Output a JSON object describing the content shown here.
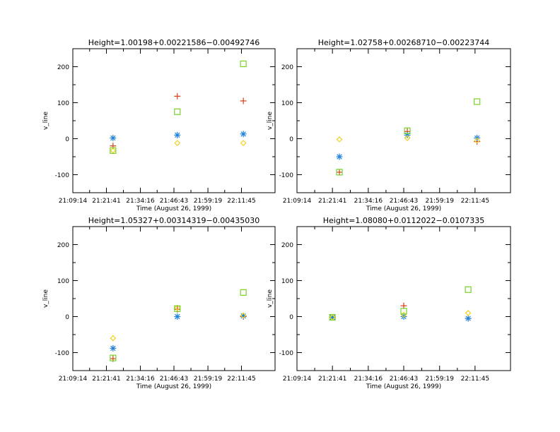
{
  "chart_data": [
    {
      "type": "scatter",
      "title": "Height=1.00198+0.00221586−0.00492746",
      "xlabel": "Time (August 26, 1999)",
      "ylabel": "v_line",
      "xlim": [
        "21:09:14",
        "22:24:12"
      ],
      "ylim": [
        -150,
        250
      ],
      "xticks": [
        "21:09:14",
        "21:21:41",
        "21:34:16",
        "21:46:43",
        "21:59:19",
        "22:11:45"
      ],
      "yticks": [
        -100,
        0,
        100,
        200
      ],
      "grid": false,
      "series": [
        {
          "marker": "plus",
          "color": "#dc3c14",
          "points": [
            [
              "21:24:08",
              -20
            ],
            [
              "21:47:58",
              118
            ],
            [
              "22:12:27",
              105
            ]
          ]
        },
        {
          "marker": "asterisk",
          "color": "#1e82dc",
          "points": [
            [
              "21:24:08",
              2
            ],
            [
              "21:47:58",
              10
            ],
            [
              "22:12:27",
              13
            ]
          ]
        },
        {
          "marker": "diamond",
          "color": "#f0d21e",
          "points": [
            [
              "21:24:08",
              -33
            ],
            [
              "21:47:58",
              -12
            ],
            [
              "22:12:27",
              -12
            ]
          ]
        },
        {
          "marker": "square",
          "color": "#78d228",
          "points": [
            [
              "21:24:08",
              -33
            ],
            [
              "21:47:58",
              75
            ],
            [
              "22:12:27",
              208
            ]
          ]
        }
      ]
    },
    {
      "type": "scatter",
      "title": "Height=1.02758+0.00268710−0.00223744",
      "xlabel": "Time (August 26, 1999)",
      "ylabel": "v_line",
      "xlim": [
        "21:09:14",
        "22:24:12"
      ],
      "ylim": [
        -150,
        250
      ],
      "xticks": [
        "21:09:14",
        "21:21:41",
        "21:34:16",
        "21:46:43",
        "21:59:19",
        "22:11:45"
      ],
      "yticks": [
        -100,
        0,
        100,
        200
      ],
      "grid": false,
      "series": [
        {
          "marker": "plus",
          "color": "#dc3c14",
          "points": [
            [
              "21:24:08",
              -93
            ],
            [
              "21:47:58",
              20
            ],
            [
              "22:12:27",
              -8
            ]
          ]
        },
        {
          "marker": "asterisk",
          "color": "#1e82dc",
          "points": [
            [
              "21:24:08",
              -50
            ],
            [
              "21:47:58",
              10
            ],
            [
              "22:12:27",
              2
            ]
          ]
        },
        {
          "marker": "diamond",
          "color": "#f0d21e",
          "points": [
            [
              "21:24:08",
              -2
            ],
            [
              "21:47:58",
              2
            ],
            [
              "22:12:27",
              -5
            ]
          ]
        },
        {
          "marker": "square",
          "color": "#78d228",
          "points": [
            [
              "21:24:08",
              -93
            ],
            [
              "21:47:58",
              22
            ],
            [
              "22:12:27",
              103
            ]
          ]
        }
      ]
    },
    {
      "type": "scatter",
      "title": "Height=1.05327+0.00314319−0.00435030",
      "xlabel": "Time (August 26, 1999)",
      "ylabel": "v_line",
      "xlim": [
        "21:09:14",
        "22:24:12"
      ],
      "ylim": [
        -150,
        250
      ],
      "xticks": [
        "21:09:14",
        "21:21:41",
        "21:34:16",
        "21:46:43",
        "21:59:19",
        "22:11:45"
      ],
      "yticks": [
        -100,
        0,
        100,
        200
      ],
      "grid": false,
      "series": [
        {
          "marker": "plus",
          "color": "#dc3c14",
          "points": [
            [
              "21:24:08",
              -117
            ],
            [
              "21:47:58",
              20
            ],
            [
              "22:12:27",
              0
            ]
          ]
        },
        {
          "marker": "asterisk",
          "color": "#1e82dc",
          "points": [
            [
              "21:24:08",
              -88
            ],
            [
              "21:47:58",
              0
            ],
            [
              "22:12:27",
              2
            ]
          ]
        },
        {
          "marker": "diamond",
          "color": "#f0d21e",
          "points": [
            [
              "21:24:08",
              -60
            ],
            [
              "21:47:58",
              25
            ],
            [
              "22:12:27",
              3
            ]
          ]
        },
        {
          "marker": "square",
          "color": "#78d228",
          "points": [
            [
              "21:24:08",
              -115
            ],
            [
              "21:47:58",
              22
            ],
            [
              "22:12:27",
              67
            ]
          ]
        }
      ]
    },
    {
      "type": "scatter",
      "title": "Height=1.08080+0.0112022−0.0107335",
      "xlabel": "Time (August 26, 1999)",
      "ylabel": "v_line",
      "xlim": [
        "21:09:14",
        "22:24:12"
      ],
      "ylim": [
        -150,
        250
      ],
      "xticks": [
        "21:09:14",
        "21:21:41",
        "21:34:16",
        "21:46:43",
        "21:59:19",
        "22:11:45"
      ],
      "yticks": [
        -100,
        0,
        100,
        200
      ],
      "grid": false,
      "series": [
        {
          "marker": "plus",
          "color": "#dc3c14",
          "points": [
            [
              "21:21:41",
              -2
            ],
            [
              "21:46:43",
              30
            ],
            [
              "22:09:20",
              -5
            ]
          ]
        },
        {
          "marker": "asterisk",
          "color": "#1e82dc",
          "points": [
            [
              "21:21:41",
              -2
            ],
            [
              "21:46:43",
              0
            ],
            [
              "22:09:20",
              -5
            ]
          ]
        },
        {
          "marker": "diamond",
          "color": "#f0d21e",
          "points": [
            [
              "21:21:41",
              -2
            ],
            [
              "21:46:43",
              5
            ],
            [
              "22:09:20",
              10
            ]
          ]
        },
        {
          "marker": "square",
          "color": "#78d228",
          "points": [
            [
              "21:21:41",
              -2
            ],
            [
              "21:46:43",
              15
            ],
            [
              "22:09:20",
              75
            ]
          ]
        }
      ]
    }
  ]
}
